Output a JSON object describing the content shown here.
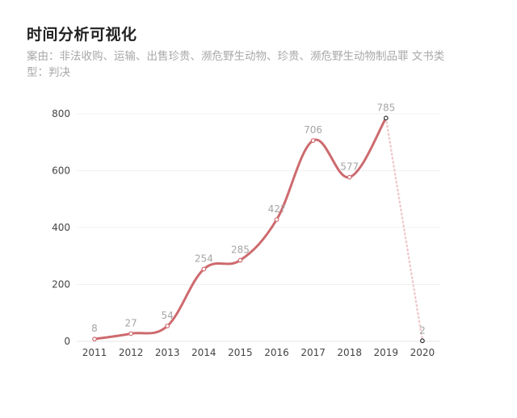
{
  "header": {
    "title": "时间分析可视化",
    "subtitle": "案由：非法收购、运输、出售珍贵、濒危野生动物、珍贵、濒危野生动物制品罪  文书类型：判决"
  },
  "colors": {
    "line": "#cd6a6e",
    "projection": "#f0c8cc",
    "grid": "#f0f0f0",
    "marker_stroke": "#333333"
  },
  "chart_data": {
    "type": "line",
    "title": "时间分析可视化",
    "subtitle": "案由：非法收购、运输、出售珍贵、濒危野生动物、珍贵、濒危野生动物制品罪  文书类型：判决",
    "xlabel": "",
    "ylabel": "",
    "categories": [
      "2011",
      "2012",
      "2013",
      "2014",
      "2015",
      "2016",
      "2017",
      "2018",
      "2019",
      "2020"
    ],
    "values": [
      8,
      27,
      54,
      254,
      285,
      428,
      706,
      577,
      785,
      2
    ],
    "data_labels": [
      "8",
      "27",
      "54",
      "254",
      "285",
      "42?",
      "706",
      "577",
      "785",
      "2"
    ],
    "yticks": [
      0,
      200,
      400,
      600,
      800
    ],
    "ylim": [
      0,
      800
    ],
    "grid": true,
    "legend": null,
    "smooth": true,
    "notes": "2019→2020 segment drawn as dotted light-pink line (incomplete year)"
  }
}
